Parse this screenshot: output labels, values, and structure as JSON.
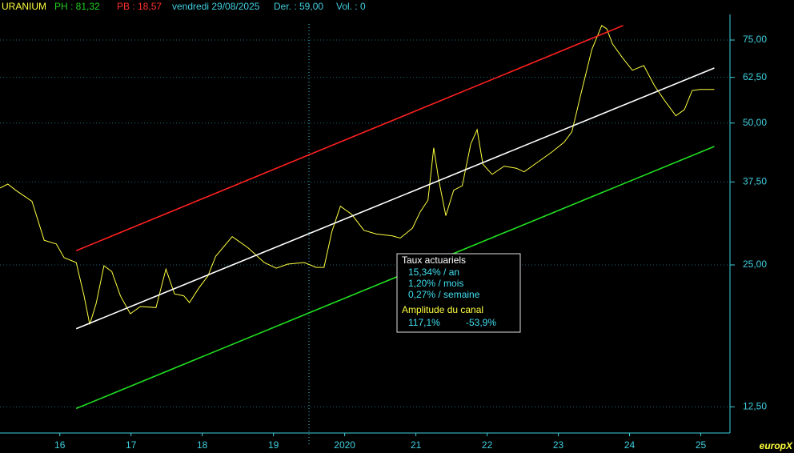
{
  "chart_data": {
    "type": "line",
    "header": {
      "name": "URANIUM",
      "high": "PH : 81,32",
      "low": "PB : 18,57",
      "date": "vendredi 29/08/2025",
      "last": "Der. : 59,00",
      "volume": "Vol. : 0"
    },
    "info_box": {
      "title": "Taux actuariels",
      "year": "15,34% / an",
      "month": "1,20% / mois",
      "week": "0,27% / semaine",
      "channel_title": "Amplitude du canal",
      "channel_up": "117,1%",
      "channel_down": "-53,9%"
    },
    "brand": "europX",
    "log_scale": true,
    "grid": true,
    "xlim": [
      2015.66,
      2025.91
    ],
    "ylim": [
      11,
      85
    ],
    "xticks": [
      {
        "value": 2016.5,
        "label": "16"
      },
      {
        "value": 2017.5,
        "label": "17"
      },
      {
        "value": 2018.5,
        "label": "18"
      },
      {
        "value": 2019.5,
        "label": "19"
      },
      {
        "value": 2020.5,
        "label": "2020"
      },
      {
        "value": 2021.5,
        "label": "21"
      },
      {
        "value": 2022.5,
        "label": "22"
      },
      {
        "value": 2023.5,
        "label": "23"
      },
      {
        "value": 2024.5,
        "label": "24"
      },
      {
        "value": 2025.5,
        "label": "25"
      }
    ],
    "yticks": [
      {
        "value": 12.5,
        "label": "12,50"
      },
      {
        "value": 25,
        "label": "25,00"
      },
      {
        "value": 37.5,
        "label": "37,50"
      },
      {
        "value": 50,
        "label": "50,00"
      },
      {
        "value": 62.5,
        "label": "62,50"
      },
      {
        "value": 75,
        "label": "75,00"
      }
    ],
    "series": [
      {
        "color": "#ffff40",
        "x": [
          2015.66,
          2015.77,
          2015.88,
          2016.11,
          2016.28,
          2016.45,
          2016.56,
          2016.73,
          2016.84,
          2016.92,
          2017.01,
          2017.12,
          2017.23,
          2017.35,
          2017.49,
          2017.63,
          2017.85,
          2017.99,
          2018.11,
          2018.24,
          2018.32,
          2018.45,
          2018.58,
          2018.69,
          2018.92,
          2019.14,
          2019.37,
          2019.54,
          2019.7,
          2019.93,
          2020.1,
          2020.21,
          2020.32,
          2020.44,
          2020.6,
          2020.77,
          2020.94,
          2021.17,
          2021.28,
          2021.45,
          2021.56,
          2021.67,
          2021.75,
          2021.82,
          2021.92,
          2022.03,
          2022.15,
          2022.27,
          2022.36,
          2022.44,
          2022.57,
          2022.74,
          2022.91,
          2023.02,
          2023.19,
          2023.41,
          2023.58,
          2023.69,
          2023.81,
          2023.97,
          2024.11,
          2024.18,
          2024.26,
          2024.4,
          2024.54,
          2024.7,
          2024.85,
          2024.99,
          2025.15,
          2025.27,
          2025.38,
          2025.49,
          2025.69
        ],
        "values": [
          36.4,
          37.1,
          36.0,
          34.1,
          28.2,
          27.7,
          25.9,
          25.3,
          21.5,
          18.7,
          20.7,
          24.9,
          24.2,
          21.5,
          19.7,
          20.4,
          20.3,
          24.5,
          21.7,
          21.5,
          20.8,
          22.3,
          23.7,
          26.1,
          28.7,
          27.2,
          25.3,
          24.6,
          25.1,
          25.3,
          24.7,
          24.7,
          29.4,
          33.3,
          32.0,
          29.6,
          29.1,
          28.8,
          28.5,
          29.9,
          32.4,
          34.3,
          44.3,
          37.9,
          31.8,
          36.0,
          36.8,
          45.1,
          48.4,
          40.9,
          38.9,
          40.5,
          40.1,
          39.4,
          41.1,
          43.4,
          45.5,
          47.9,
          57.1,
          71.6,
          80.5,
          79.2,
          73.6,
          68.8,
          64.7,
          66.2,
          60.0,
          55.9,
          51.8,
          53.4,
          58.6,
          58.9,
          58.9
        ]
      },
      {
        "color": "#ff2020",
        "x": [
          2016.73,
          2024.41
        ],
        "values": [
          26.8,
          80.5
        ]
      },
      {
        "color": "#ffffff",
        "x": [
          2016.73,
          2025.69
        ],
        "values": [
          18.3,
          65.4
        ]
      },
      {
        "color": "#20e020",
        "x": [
          2016.73,
          2025.69
        ],
        "values": [
          12.4,
          44.6
        ]
      }
    ]
  }
}
